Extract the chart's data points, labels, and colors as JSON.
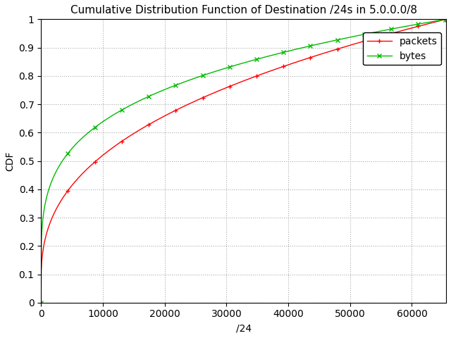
{
  "title": "Cumulative Distribution Function of Destination /24s in 5.0.0.0/8",
  "xlabel": "/24",
  "ylabel": "CDF",
  "xlim": [
    0,
    65536
  ],
  "ylim": [
    0,
    1
  ],
  "packets_color": "#ff0000",
  "bytes_color": "#00bb00",
  "packets_label": "packets",
  "bytes_label": "bytes",
  "packets_marker": "+",
  "bytes_marker": "x",
  "background_color": "#ffffff",
  "grid_color": "#aaaaaa",
  "num_points": 2000,
  "x_max": 65536,
  "title_fontsize": 11,
  "packets_power": 0.38,
  "bytes_power": 0.26,
  "packets_jump": 0.06,
  "bytes_jump": 0.065
}
